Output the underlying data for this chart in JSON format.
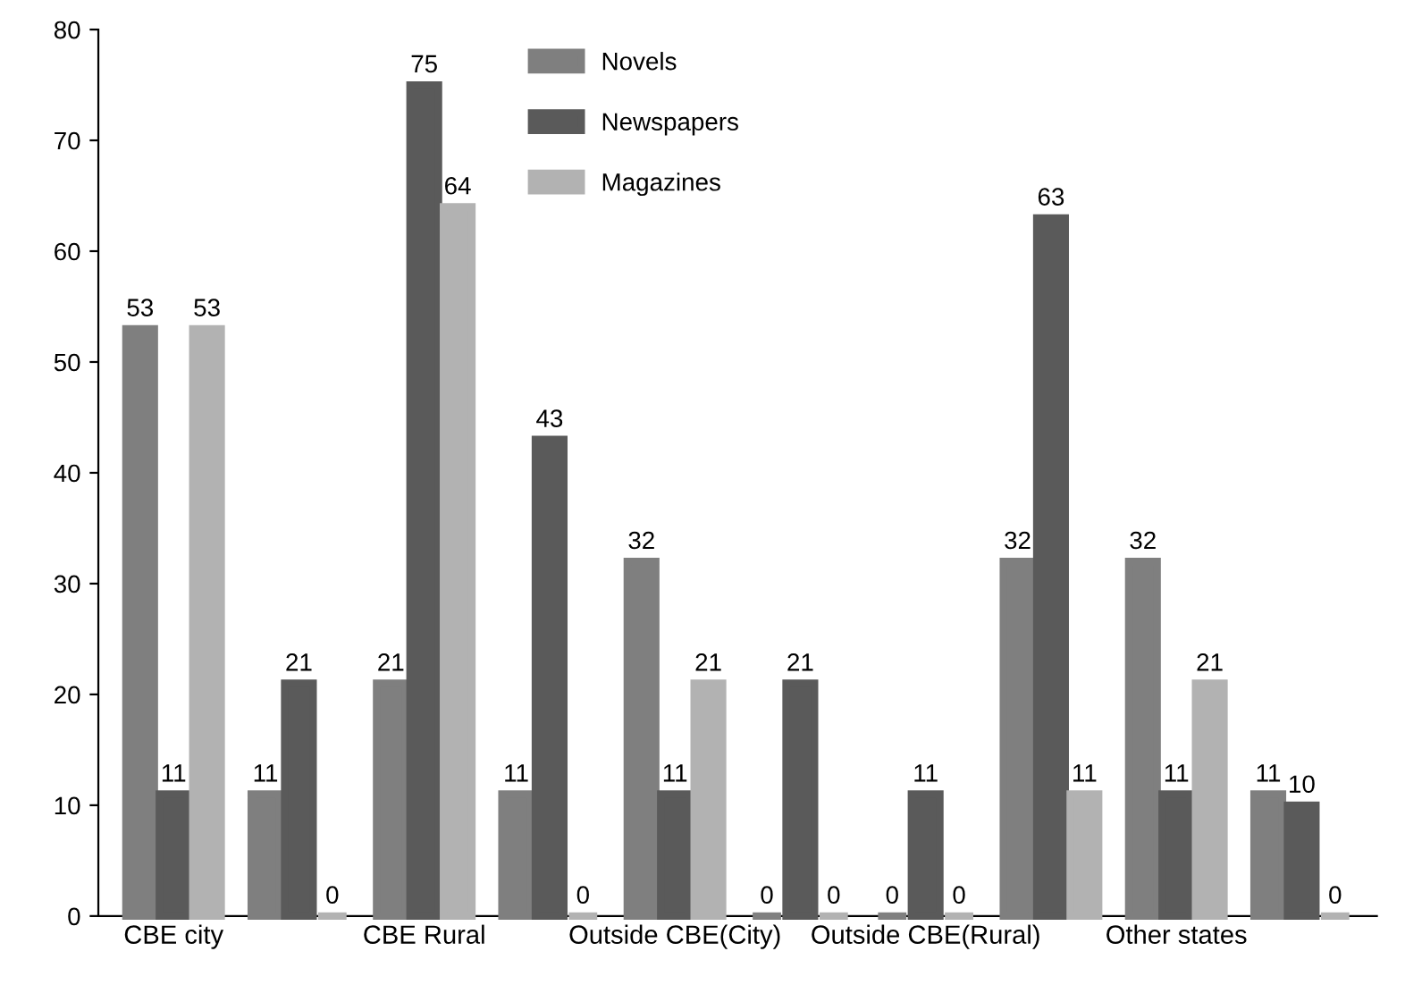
{
  "chart_data": {
    "type": "bar",
    "categories": [
      "CBE city",
      null,
      "CBE Rural",
      null,
      "Outside CBE(City)",
      null,
      "Outside CBE(Rural)",
      null,
      "Other states",
      null
    ],
    "series": [
      {
        "name": "Novels",
        "color": "#7f7f7f",
        "values": [
          53,
          11,
          21,
          11,
          32,
          0,
          0,
          32,
          32,
          11
        ]
      },
      {
        "name": "Newspapers",
        "color": "#5a5a5a",
        "values": [
          11,
          21,
          75,
          43,
          11,
          21,
          11,
          63,
          11,
          10
        ]
      },
      {
        "name": "Magazines",
        "color": "#b2b2b2",
        "values": [
          53,
          0,
          64,
          0,
          21,
          0,
          0,
          11,
          21,
          0
        ]
      }
    ],
    "ylim": [
      0,
      80
    ],
    "yticks": [
      0,
      10,
      20,
      30,
      40,
      50,
      60,
      70,
      80
    ],
    "data_labels": true,
    "legend": "top",
    "grid": false
  }
}
